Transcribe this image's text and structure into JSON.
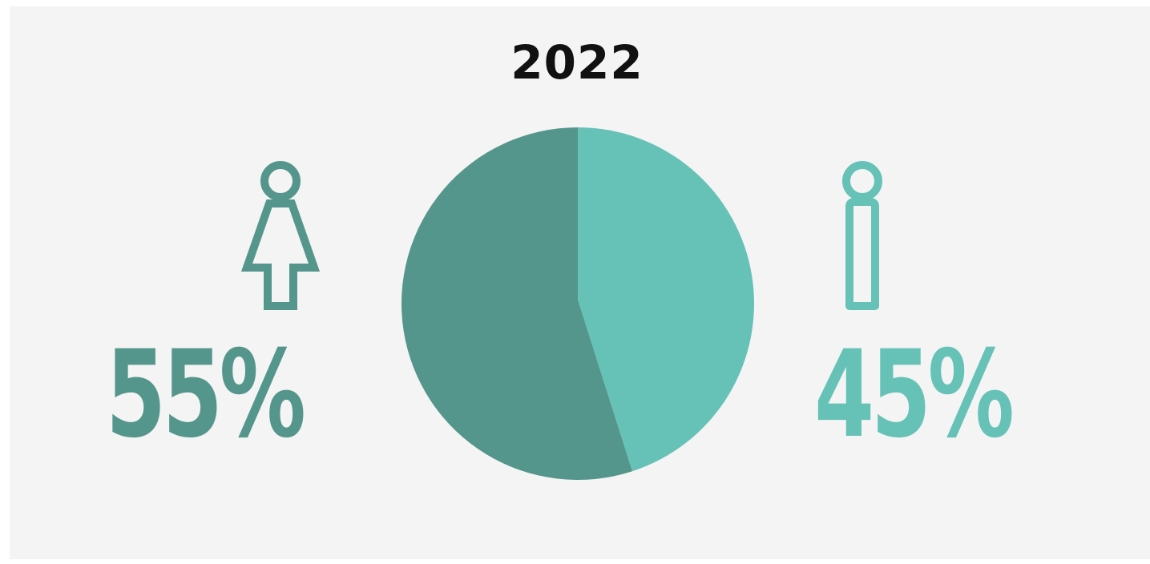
{
  "colors": {
    "female": "#55968c",
    "male": "#66c2b7",
    "background": "#f4f4f4",
    "title": "#111111"
  },
  "chart_data": {
    "type": "pie",
    "title": "2022",
    "slices": [
      {
        "label": "55%",
        "value": 55,
        "icon": "female-icon",
        "color": "#55968c"
      },
      {
        "label": "45%",
        "value": 45,
        "icon": "male-icon",
        "color": "#66c2b7"
      }
    ]
  }
}
